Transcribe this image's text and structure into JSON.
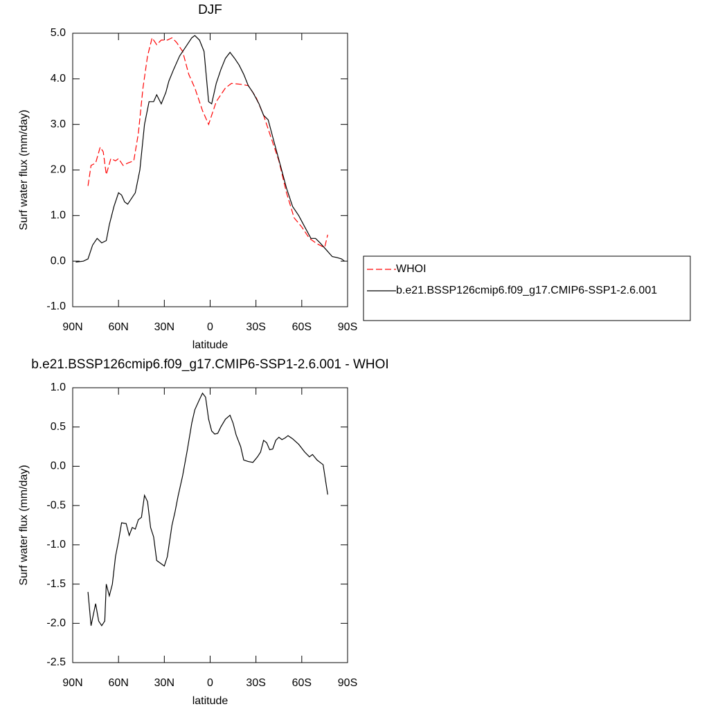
{
  "chart_data": [
    {
      "type": "line",
      "title": "DJF",
      "x_label": "latitude",
      "y_label": "Surf water flux (mm/day)",
      "xlim": [
        90,
        -90
      ],
      "xticks": [
        {
          "value": 90,
          "label": "90N"
        },
        {
          "value": 60,
          "label": "60N"
        },
        {
          "value": 30,
          "label": "30N"
        },
        0,
        {
          "value": -30,
          "label": "30S"
        },
        {
          "value": -60,
          "label": "60S"
        },
        {
          "value": -90,
          "label": "90S"
        }
      ],
      "ylim": [
        -1,
        5
      ],
      "yticks": [
        {
          "value": -1,
          "label": "-1.0"
        },
        {
          "value": 0,
          "label": "0.0"
        },
        {
          "value": 1,
          "label": "1.0"
        },
        {
          "value": 2,
          "label": "2.0"
        },
        {
          "value": 3,
          "label": "3.0"
        },
        {
          "value": 4,
          "label": "4.0"
        },
        {
          "value": 5,
          "label": "5.0"
        }
      ],
      "legend": "right",
      "series": [
        {
          "name": "WHOI",
          "color": "#ff0000",
          "dash": true,
          "x": [
            80,
            78,
            75,
            72,
            70,
            68,
            65,
            62,
            60,
            57,
            54,
            50,
            47,
            44,
            41,
            38,
            35,
            32,
            28,
            25,
            22,
            18,
            14,
            10,
            5,
            1,
            -4,
            -10,
            -14,
            -20,
            -25,
            -30,
            -35,
            -40,
            -45,
            -50,
            -55,
            -60,
            -65,
            -70,
            -73,
            -75,
            -77
          ],
          "values": [
            1.65,
            2.1,
            2.15,
            2.5,
            2.4,
            1.9,
            2.25,
            2.2,
            2.25,
            2.1,
            2.15,
            2.2,
            2.8,
            3.8,
            4.5,
            4.9,
            4.75,
            4.85,
            4.85,
            4.9,
            4.8,
            4.6,
            4.1,
            3.8,
            3.3,
            3.0,
            3.5,
            3.8,
            3.9,
            3.88,
            3.85,
            3.6,
            3.2,
            2.7,
            2.2,
            1.5,
            0.95,
            0.75,
            0.5,
            0.38,
            0.33,
            0.3,
            0.58
          ]
        },
        {
          "name": "b.e21.BSSP126cmip6.f09_g17.CMIP6-SSP1-2.6.001",
          "color": "#000000",
          "dash": false,
          "x": [
            88,
            83,
            80,
            77,
            74,
            71,
            68,
            66,
            63,
            60,
            58,
            56,
            54,
            52,
            49,
            46,
            43,
            40,
            37,
            35,
            32,
            29,
            27,
            24,
            20,
            16,
            12,
            10,
            7,
            4,
            1,
            -1,
            -4,
            -7,
            -10,
            -13,
            -16,
            -19,
            -22,
            -25,
            -28,
            -32,
            -35,
            -38,
            -42,
            -46,
            -50,
            -54,
            -58,
            -62,
            -66,
            -69,
            -72,
            -76,
            -80,
            -83,
            -86,
            -88
          ],
          "values": [
            -0.02,
            0.0,
            0.05,
            0.35,
            0.5,
            0.4,
            0.45,
            0.8,
            1.2,
            1.5,
            1.45,
            1.3,
            1.25,
            1.35,
            1.5,
            2.0,
            3.0,
            3.5,
            3.5,
            3.65,
            3.45,
            3.7,
            3.95,
            4.2,
            4.5,
            4.7,
            4.9,
            4.95,
            4.85,
            4.6,
            3.5,
            3.45,
            3.9,
            4.2,
            4.45,
            4.58,
            4.45,
            4.3,
            4.1,
            3.85,
            3.7,
            3.45,
            3.2,
            3.1,
            2.6,
            2.1,
            1.6,
            1.2,
            1.0,
            0.75,
            0.5,
            0.5,
            0.4,
            0.25,
            0.1,
            0.08,
            0.05,
            0.0
          ]
        }
      ]
    },
    {
      "type": "line",
      "title": "b.e21.BSSP126cmip6.f09_g17.CMIP6-SSP1-2.6.001 - WHOI",
      "x_label": "latitude",
      "y_label": "Surf water flux (mm/day)",
      "xlim": [
        90,
        -90
      ],
      "xticks": [
        {
          "value": 90,
          "label": "90N"
        },
        {
          "value": 60,
          "label": "60N"
        },
        {
          "value": 30,
          "label": "30N"
        },
        0,
        {
          "value": -30,
          "label": "30S"
        },
        {
          "value": -60,
          "label": "60S"
        },
        {
          "value": -90,
          "label": "90S"
        }
      ],
      "ylim": [
        -2.5,
        1
      ],
      "yticks": [
        -2.5,
        {
          "value": -2,
          "label": "-2.0"
        },
        -1.5,
        {
          "value": -1,
          "label": "-1.0"
        },
        -0.5,
        {
          "value": 0,
          "label": "0.0"
        },
        0.5,
        {
          "value": 1,
          "label": "1.0"
        }
      ],
      "series": [
        {
          "color": "#000000",
          "dash": false,
          "x": [
            80,
            78,
            75,
            73,
            71,
            69,
            68,
            66,
            64,
            62,
            60,
            58,
            55,
            53,
            51,
            49,
            47,
            45,
            43,
            41,
            39,
            37,
            35,
            30,
            28,
            25,
            23,
            21,
            18,
            15,
            12,
            10,
            7,
            5,
            3,
            1,
            -1,
            -3,
            -5,
            -7,
            -10,
            -13,
            -15,
            -17,
            -20,
            -22,
            -25,
            -28,
            -31,
            -33,
            -35,
            -37,
            -39,
            -41,
            -43,
            -45,
            -47,
            -49,
            -51,
            -54,
            -58,
            -62,
            -65,
            -67,
            -70,
            -72,
            -74,
            -77
          ],
          "values": [
            -1.6,
            -2.03,
            -1.75,
            -1.97,
            -2.03,
            -1.97,
            -1.5,
            -1.65,
            -1.5,
            -1.15,
            -0.95,
            -0.72,
            -0.73,
            -0.88,
            -0.78,
            -0.8,
            -0.68,
            -0.65,
            -0.37,
            -0.45,
            -0.78,
            -0.9,
            -1.2,
            -1.27,
            -1.15,
            -0.75,
            -0.58,
            -0.38,
            -0.12,
            0.2,
            0.55,
            0.72,
            0.85,
            0.93,
            0.88,
            0.6,
            0.45,
            0.41,
            0.42,
            0.5,
            0.6,
            0.65,
            0.55,
            0.4,
            0.25,
            0.08,
            0.06,
            0.05,
            0.12,
            0.18,
            0.33,
            0.3,
            0.21,
            0.22,
            0.33,
            0.37,
            0.34,
            0.36,
            0.39,
            0.35,
            0.28,
            0.18,
            0.12,
            0.15,
            0.08,
            0.05,
            0.02,
            -0.36
          ]
        }
      ]
    }
  ]
}
